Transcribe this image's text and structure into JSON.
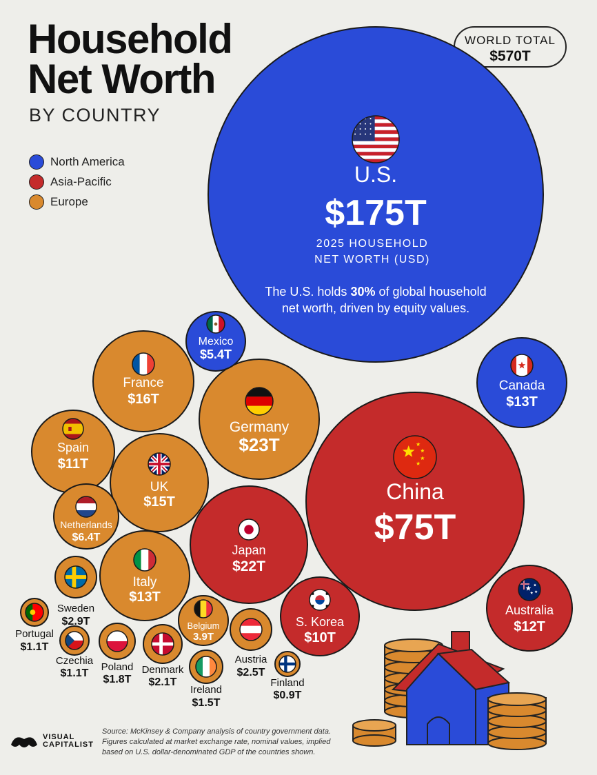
{
  "title": "Household Net Worth",
  "title_line1": "Household",
  "title_line2": "Net Worth",
  "subtitle": "BY COUNTRY",
  "world_total": {
    "label": "WORLD TOTAL",
    "value": "$570T"
  },
  "legend": [
    {
      "name": "North America",
      "color": "#2a4bd8"
    },
    {
      "name": "Asia-Pacific",
      "color": "#c42b2b"
    },
    {
      "name": "Europe",
      "color": "#d9892e"
    }
  ],
  "us_callout": {
    "subtitle_line1": "2025 HOUSEHOLD",
    "subtitle_line2": "NET WORTH (USD)",
    "note_line1_pre": "The U.S. holds ",
    "note_line1_bold": "30%",
    "note_line1_post": " of global household",
    "note_line2": "net worth, driven by equity values."
  },
  "chart_data": {
    "type": "bubble",
    "title": "Household Net Worth",
    "subtitle": "BY COUNTRY",
    "unit": "USD trillions",
    "series": [
      {
        "country": "U.S.",
        "label": "$175T",
        "value": 175,
        "region": "North America",
        "flag": "us-flag-icon"
      },
      {
        "country": "China",
        "label": "$75T",
        "value": 75,
        "region": "Asia-Pacific",
        "flag": "china-flag-icon"
      },
      {
        "country": "Germany",
        "label": "$23T",
        "value": 23,
        "region": "Europe",
        "flag": "germany-flag-icon"
      },
      {
        "country": "Japan",
        "label": "$22T",
        "value": 22,
        "region": "Asia-Pacific",
        "flag": "japan-flag-icon"
      },
      {
        "country": "France",
        "label": "$16T",
        "value": 16,
        "region": "Europe",
        "flag": "france-flag-icon"
      },
      {
        "country": "UK",
        "label": "$15T",
        "value": 15,
        "region": "Europe",
        "flag": "uk-flag-icon"
      },
      {
        "country": "Canada",
        "label": "$13T",
        "value": 13,
        "region": "North America",
        "flag": "canada-flag-icon"
      },
      {
        "country": "Italy",
        "label": "$13T",
        "value": 13,
        "region": "Europe",
        "flag": "italy-flag-icon"
      },
      {
        "country": "Australia",
        "label": "$12T",
        "value": 12,
        "region": "Asia-Pacific",
        "flag": "australia-flag-icon"
      },
      {
        "country": "Spain",
        "label": "$11T",
        "value": 11,
        "region": "Europe",
        "flag": "spain-flag-icon"
      },
      {
        "country": "S. Korea",
        "label": "$10T",
        "value": 10,
        "region": "Asia-Pacific",
        "flag": "south-korea-flag-icon"
      },
      {
        "country": "Netherlands",
        "label": "$6.4T",
        "value": 6.4,
        "region": "Europe",
        "flag": "netherlands-flag-icon"
      },
      {
        "country": "Mexico",
        "label": "$5.4T",
        "value": 5.4,
        "region": "North America",
        "flag": "mexico-flag-icon"
      },
      {
        "country": "Belgium",
        "label": "3.9T",
        "value": 3.9,
        "region": "Europe",
        "flag": "belgium-flag-icon"
      },
      {
        "country": "Sweden",
        "label": "$2.9T",
        "value": 2.9,
        "region": "Europe",
        "flag": "sweden-flag-icon"
      },
      {
        "country": "Austria",
        "label": "$2.5T",
        "value": 2.5,
        "region": "Europe",
        "flag": "austria-flag-icon"
      },
      {
        "country": "Denmark",
        "label": "$2.1T",
        "value": 2.1,
        "region": "Europe",
        "flag": "denmark-flag-icon"
      },
      {
        "country": "Poland",
        "label": "$1.8T",
        "value": 1.8,
        "region": "Europe",
        "flag": "poland-flag-icon"
      },
      {
        "country": "Ireland",
        "label": "$1.5T",
        "value": 1.5,
        "region": "Europe",
        "flag": "ireland-flag-icon"
      },
      {
        "country": "Portugal",
        "label": "$1.1T",
        "value": 1.1,
        "region": "Europe",
        "flag": "portugal-flag-icon"
      },
      {
        "country": "Czechia",
        "label": "$1.1T",
        "value": 1.1,
        "region": "Europe",
        "flag": "czechia-flag-icon"
      },
      {
        "country": "Finland",
        "label": "$0.9T",
        "value": 0.9,
        "region": "Europe",
        "flag": "finland-flag-icon"
      }
    ]
  },
  "source": {
    "line1": "Source: McKinsey & Company analysis of country government data.",
    "line2": "Figures calculated at market exchange rate, nominal values, implied",
    "line3": "based on U.S. dollar-denominated GDP of the countries shown."
  },
  "logo": {
    "line1": "VISUAL",
    "line2": "CAPITALIST"
  }
}
